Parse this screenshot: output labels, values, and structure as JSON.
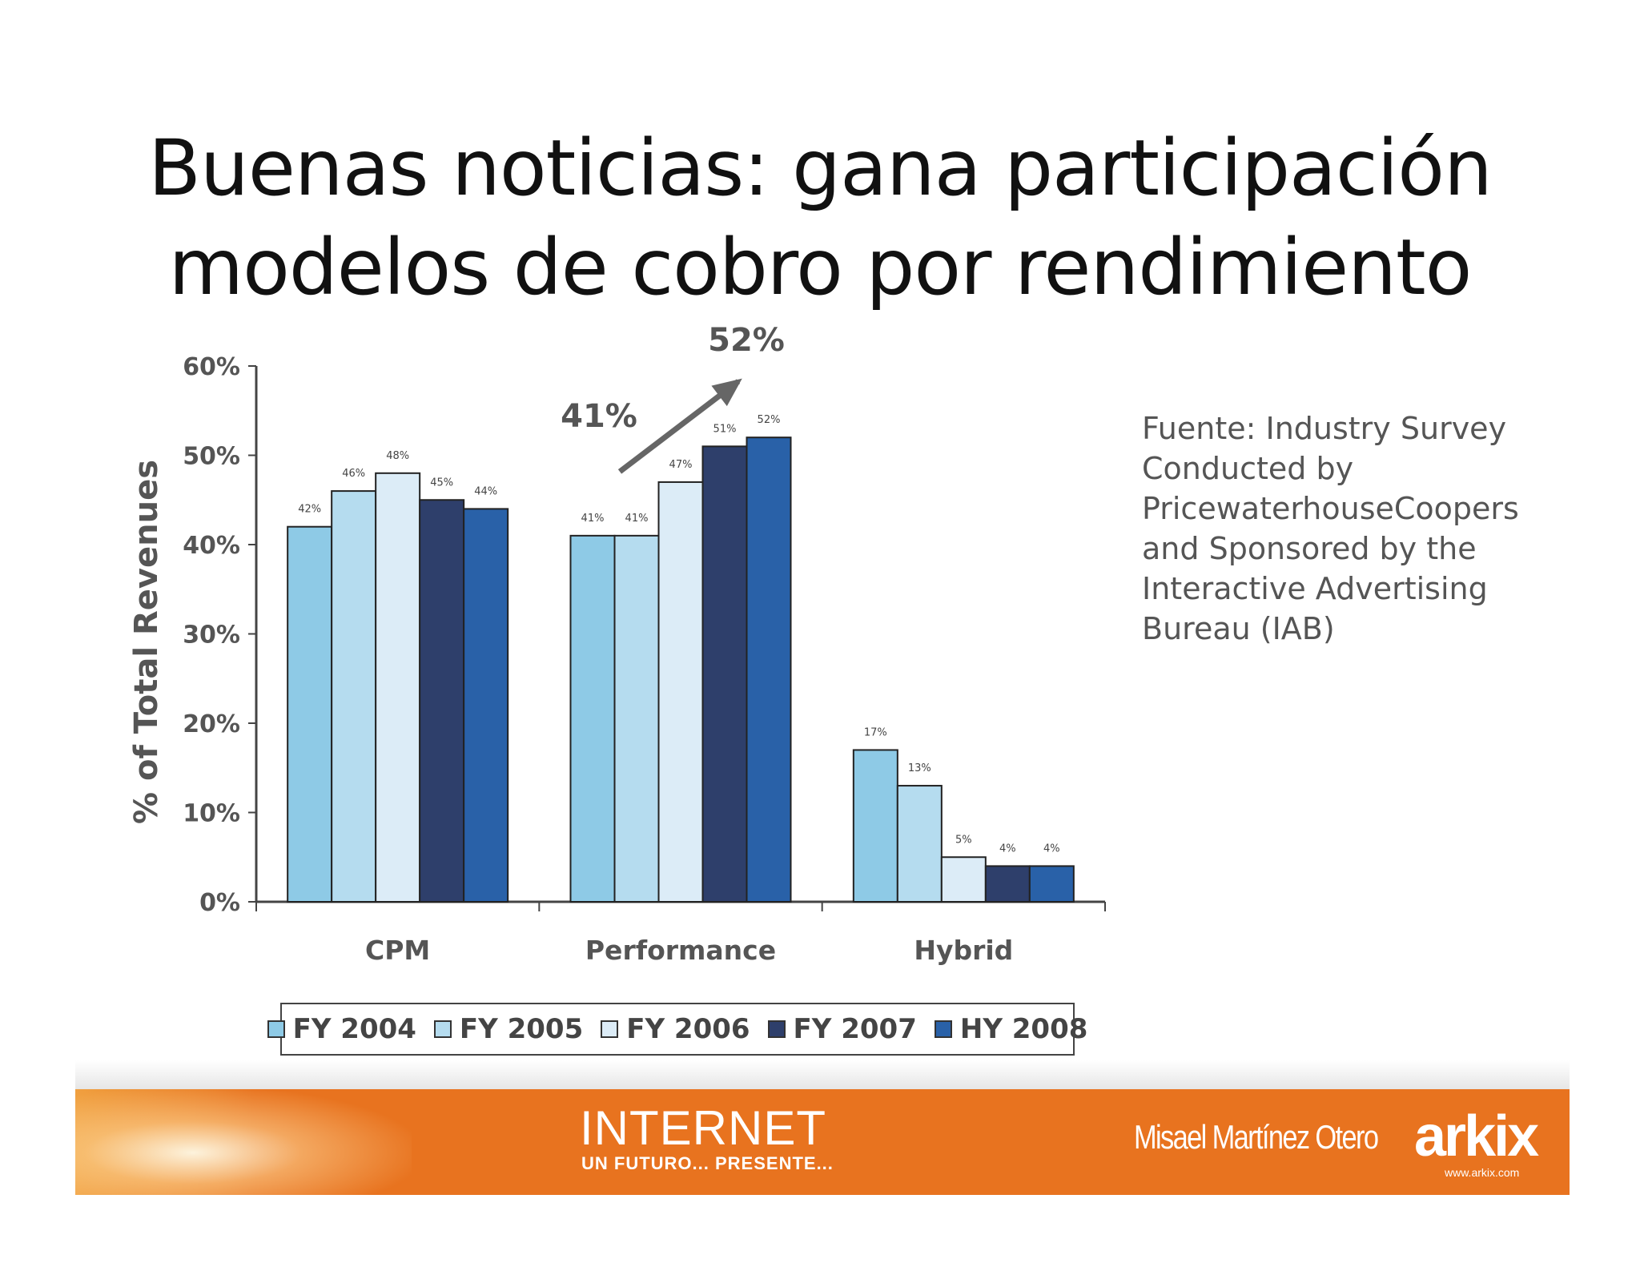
{
  "slide": {
    "title_line1": "Buenas noticias: gana participación",
    "title_line2": "modelos de cobro por rendimiento",
    "source_text": "Fuente: Industry Survey Conducted by PricewaterhouseCoopers and Sponsored by the Interactive Advertising Bureau (IAB)"
  },
  "chart_data": {
    "type": "bar",
    "ylabel": "% of Total Revenues",
    "ylim": [
      0,
      60
    ],
    "yticks": [
      "0%",
      "10%",
      "20%",
      "30%",
      "40%",
      "50%",
      "60%"
    ],
    "categories": [
      "CPM",
      "Performance",
      "Hybrid"
    ],
    "series": [
      {
        "name": "FY 2004",
        "color": "#8ecae6",
        "values": [
          42,
          41,
          17
        ],
        "labels": [
          "42%",
          "41%",
          "17%"
        ]
      },
      {
        "name": "FY 2005",
        "color": "#b5dcef",
        "values": [
          46,
          41,
          13
        ],
        "labels": [
          "46%",
          "41%",
          "13%"
        ]
      },
      {
        "name": "FY 2006",
        "color": "#dcecf7",
        "values": [
          48,
          47,
          5
        ],
        "labels": [
          "48%",
          "47%",
          "5%"
        ]
      },
      {
        "name": "FY 2007",
        "color": "#2e3f6b",
        "values": [
          45,
          51,
          4
        ],
        "labels": [
          "45%",
          "51%",
          "4%"
        ]
      },
      {
        "name": "HY 2008",
        "color": "#2961a8",
        "values": [
          44,
          52,
          4
        ],
        "labels": [
          "44%",
          "52%",
          "4%"
        ]
      }
    ],
    "annotations": {
      "start_label": "41%",
      "end_label": "52%"
    },
    "legend_position": "bottom",
    "grid": false
  },
  "footer": {
    "brand": "INTERNET",
    "tagline": "UN FUTURO... PRESENTE...",
    "author": "Misael Martínez Otero",
    "logo": "arkix",
    "url": "www.arkix.com",
    "color": "#e8731f"
  }
}
